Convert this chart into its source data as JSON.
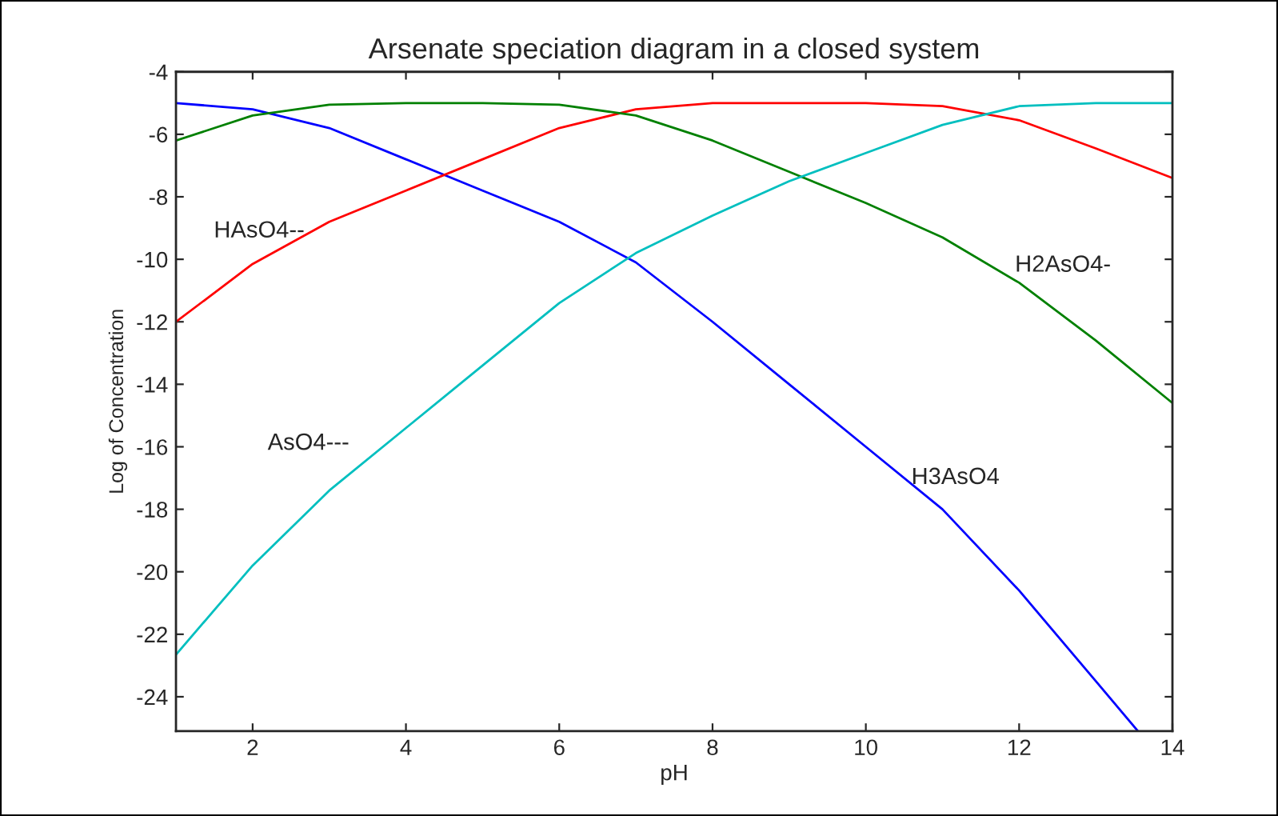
{
  "chart_data": {
    "type": "line",
    "title": "Arsenate speciation diagram in a closed system",
    "xlabel": "pH",
    "ylabel": "Log of Concentration",
    "x": [
      1,
      2,
      3,
      4,
      5,
      6,
      7,
      8,
      9,
      10,
      11,
      12,
      13,
      14
    ],
    "series": [
      {
        "name": "H3AsO4",
        "color": "#0000ff",
        "x": [
          1,
          2,
          3,
          4,
          5,
          6,
          7,
          8,
          9,
          10,
          11,
          12,
          13,
          13.55
        ],
        "values": [
          -5.0,
          -5.2,
          -5.8,
          -6.8,
          -7.8,
          -8.8,
          -10.1,
          -12.0,
          -14.0,
          -16.0,
          -18.0,
          -20.6,
          -23.5,
          -25.1
        ]
      },
      {
        "name": "HAsO4--",
        "color": "#ff0000",
        "values": [
          -12.0,
          -10.15,
          -8.8,
          -7.8,
          -6.8,
          -5.8,
          -5.2,
          -5.0,
          -5.0,
          -5.0,
          -5.1,
          -5.55,
          -6.45,
          -7.4
        ]
      },
      {
        "name": "H2AsO4-",
        "color": "#008000",
        "values": [
          -6.2,
          -5.4,
          -5.05,
          -5.0,
          -5.0,
          -5.05,
          -5.4,
          -6.2,
          -7.2,
          -8.2,
          -9.3,
          -10.75,
          -12.6,
          -14.6
        ]
      },
      {
        "name": "AsO4---",
        "color": "#00bfbf",
        "values": [
          -22.65,
          -19.8,
          -17.4,
          -15.4,
          -13.4,
          -11.4,
          -9.8,
          -8.6,
          -7.5,
          -6.6,
          -5.7,
          -5.1,
          -5.0,
          -5.0
        ]
      }
    ],
    "xlim": [
      1,
      14
    ],
    "ylim": [
      -25.1,
      -4
    ],
    "xticks": [
      2,
      4,
      6,
      8,
      10,
      12,
      14
    ],
    "yticks": [
      -4,
      -6,
      -8,
      -10,
      -12,
      -14,
      -16,
      -18,
      -20,
      -22,
      -24
    ],
    "grid": false,
    "legend": false
  }
}
